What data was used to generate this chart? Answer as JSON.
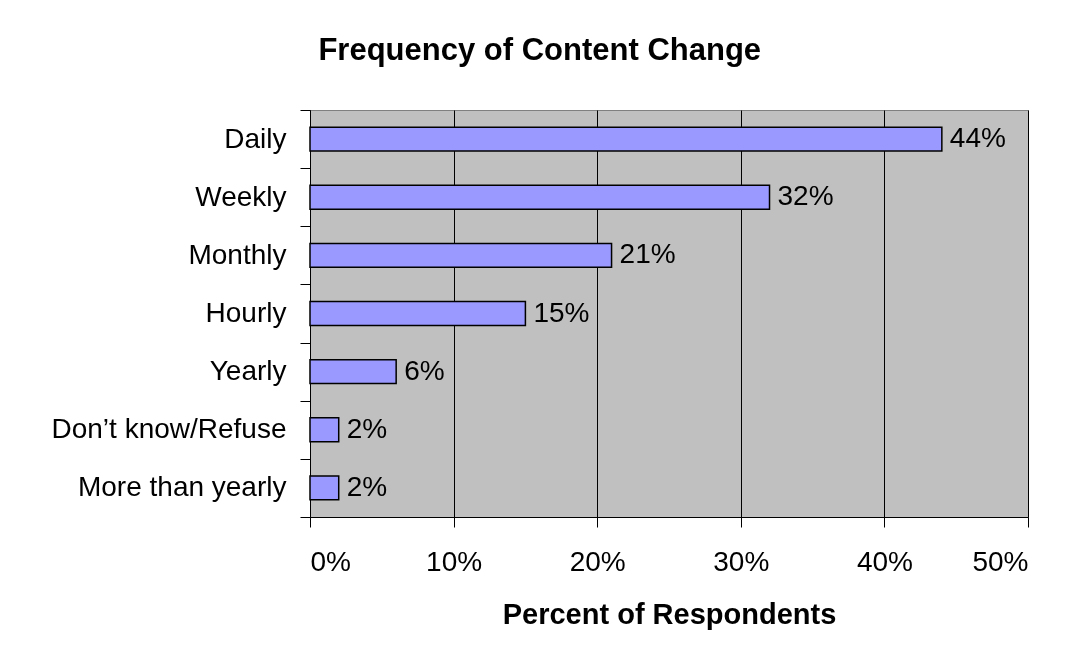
{
  "chart_data": {
    "type": "bar",
    "orientation": "horizontal",
    "title": "Frequency of Content Change",
    "xlabel": "Percent of Respondents",
    "categories": [
      "Daily",
      "Weekly",
      "Monthly",
      "Hourly",
      "Yearly",
      "Don’t know/Refuse",
      "More than yearly"
    ],
    "values": [
      44,
      32,
      21,
      15,
      6,
      2,
      2
    ],
    "value_labels": [
      "44%",
      "32%",
      "21%",
      "15%",
      "6%",
      "2%",
      "2%"
    ],
    "color": "#9999ff",
    "xlim": [
      0,
      50
    ],
    "xticks": [
      {
        "value": 0,
        "label": "0%"
      },
      {
        "value": 10,
        "label": "10%"
      },
      {
        "value": 20,
        "label": "20%"
      },
      {
        "value": 30,
        "label": "30%"
      },
      {
        "value": 40,
        "label": "40%"
      },
      {
        "value": 50,
        "label": "50%"
      }
    ],
    "grid": "x"
  }
}
